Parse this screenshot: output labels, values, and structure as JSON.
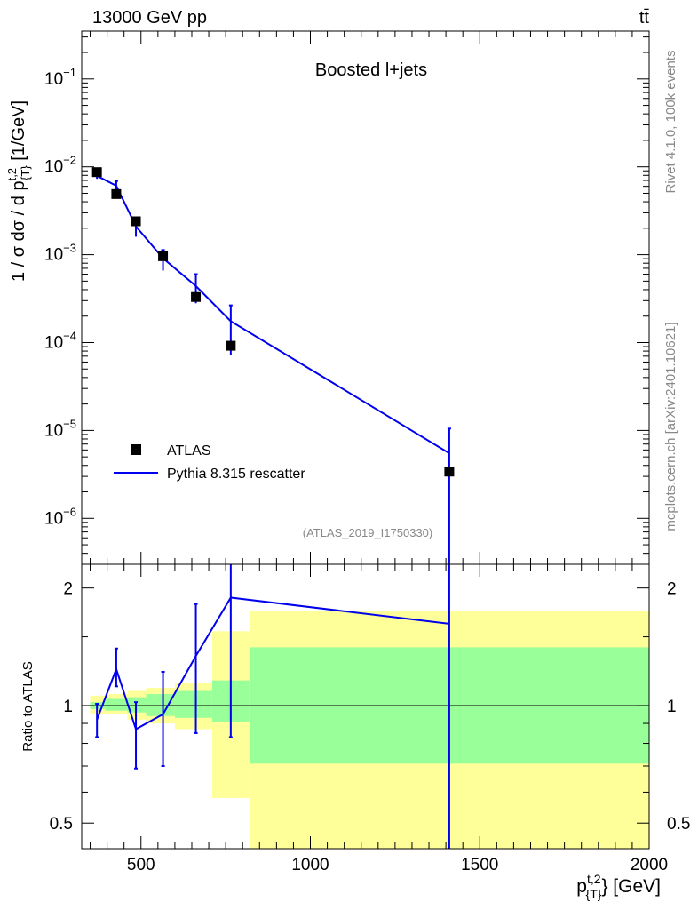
{
  "header": {
    "energy_label": "13000 GeV pp",
    "process_label": "tt̄"
  },
  "side_labels": {
    "rivet": "Rivet 4.1.0,  100k events",
    "mcplots": "mcplots.cern.ch [arXiv:2401.10621]"
  },
  "chart_data": [
    {
      "type": "scatter+line",
      "panel": "main",
      "title": "Boosted l+jets",
      "analysis_id": "(ATLAS_2019_I1750330)",
      "ylabel": "1 / σ dσ / d p_{T}^{t,2} [1/GeV]",
      "xlabel": "p_{T}^{t,2} [GeV]",
      "xlim": [
        325,
        2000
      ],
      "ylim": [
        3e-07,
        0.35
      ],
      "yscale": "log",
      "y_ticks": [
        "10^-6",
        "10^-5",
        "10^-4",
        "10^-3",
        "10^-2",
        "10^-1"
      ],
      "legend_position": "bottom-left",
      "legend": [
        "ATLAS",
        "Pythia 8.315 rescatter"
      ],
      "series": [
        {
          "name": "ATLAS",
          "style": "black-square-markers",
          "x": [
            370,
            427,
            485,
            565,
            662,
            765,
            1410
          ],
          "y": [
            0.0087,
            0.0049,
            0.0024,
            0.00096,
            0.00033,
            9.2e-05,
            3.4e-06
          ]
        },
        {
          "name": "Pythia 8.315 rescatter",
          "style": "blue-line",
          "x": [
            370,
            427,
            485,
            565,
            662,
            765,
            1410
          ],
          "y": [
            0.0079,
            0.0061,
            0.0021,
            0.00091,
            0.00044,
            0.000175,
            5.5e-06
          ],
          "err_low": [
            0.0073,
            0.0053,
            0.0016,
            0.00066,
            0.00028,
            7.2e-05,
            3e-07
          ],
          "err_high": [
            0.0087,
            0.0069,
            0.0025,
            0.00113,
            0.0006,
            0.000265,
            1.05e-05
          ]
        }
      ]
    },
    {
      "type": "line",
      "panel": "ratio",
      "ylabel": "Ratio to ATLAS",
      "xlabel": "p_{T}^{t,2} [GeV]",
      "xlim": [
        325,
        2000
      ],
      "ylim": [
        0.43,
        2.3
      ],
      "yscale": "log",
      "y_ticks": [
        "0.5",
        "1",
        "2"
      ],
      "x_ticks": [
        "500",
        "1000",
        "1500",
        "2000"
      ],
      "bin_edges": [
        350,
        395,
        460,
        515,
        600,
        710,
        820,
        2000
      ],
      "band_stat": [
        [
          0.98,
          1.02
        ],
        [
          0.97,
          1.04
        ],
        [
          0.96,
          1.05
        ],
        [
          0.94,
          1.07
        ],
        [
          0.93,
          1.09
        ],
        [
          0.91,
          1.16
        ],
        [
          0.71,
          1.41
        ]
      ],
      "band_total": [
        [
          0.95,
          1.06
        ],
        [
          0.95,
          1.07
        ],
        [
          0.92,
          1.09
        ],
        [
          0.9,
          1.11
        ],
        [
          0.87,
          1.14
        ],
        [
          0.58,
          1.55
        ],
        [
          0.4,
          1.75
        ]
      ],
      "series": [
        {
          "name": "Pythia 8.315 rescatter",
          "x": [
            370,
            427,
            485,
            565,
            662,
            765,
            1410
          ],
          "y": [
            0.92,
            1.24,
            0.87,
            0.95,
            1.34,
            1.89,
            1.62
          ],
          "err_low": [
            0.83,
            1.12,
            0.69,
            0.7,
            0.85,
            0.83,
            0.3
          ],
          "err_high": [
            1.01,
            1.4,
            1.02,
            1.22,
            1.82,
            2.35,
            2.4
          ]
        }
      ]
    }
  ],
  "colors": {
    "mc_line": "#0000ee",
    "band_inner": "#99ff99",
    "band_outer": "#ffff99",
    "data_marker": "#000000",
    "frame": "#000000",
    "side_text": "#888888"
  }
}
